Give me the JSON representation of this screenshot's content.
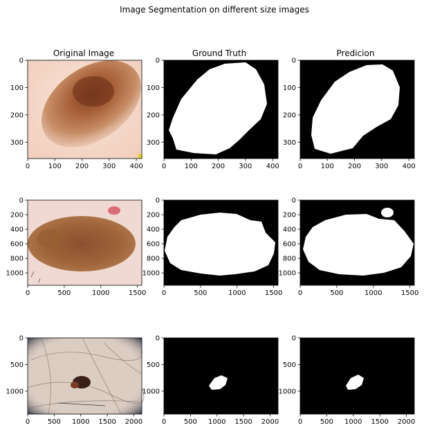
{
  "figure": {
    "title": "Image Segmentation on different size images",
    "columns": [
      "Original Image",
      "Ground Truth",
      "Predicion"
    ]
  },
  "chart_data": [
    {
      "type": "image",
      "row": 1,
      "col": 1,
      "title": "Original Image",
      "content": "skin-lesion-photo",
      "xlim": [
        0,
        420
      ],
      "ylim": [
        360,
        0
      ],
      "xticks": [
        0,
        100,
        200,
        300,
        400
      ],
      "yticks": [
        0,
        100,
        200,
        300
      ]
    },
    {
      "type": "image",
      "row": 1,
      "col": 2,
      "title": "Ground Truth",
      "content": "binary-mask",
      "xlim": [
        0,
        420
      ],
      "ylim": [
        360,
        0
      ],
      "xticks": [
        0,
        100,
        200,
        300,
        400
      ],
      "yticks": [
        0,
        100,
        200,
        300
      ]
    },
    {
      "type": "image",
      "row": 1,
      "col": 3,
      "title": "Predicion",
      "content": "binary-mask",
      "xlim": [
        0,
        420
      ],
      "ylim": [
        360,
        0
      ],
      "xticks": [
        0,
        100,
        200,
        300,
        400
      ],
      "yticks": [
        0,
        100,
        200,
        300
      ]
    },
    {
      "type": "image",
      "row": 2,
      "col": 1,
      "title": "",
      "content": "skin-lesion-photo",
      "xlim": [
        0,
        1560
      ],
      "ylim": [
        1170,
        0
      ],
      "xticks": [
        0,
        500,
        1000,
        1500
      ],
      "yticks": [
        0,
        200,
        400,
        600,
        800,
        1000
      ]
    },
    {
      "type": "image",
      "row": 2,
      "col": 2,
      "title": "",
      "content": "binary-mask",
      "xlim": [
        0,
        1560
      ],
      "ylim": [
        1170,
        0
      ],
      "xticks": [
        0,
        500,
        1000,
        1500
      ],
      "yticks": [
        0,
        200,
        400,
        600,
        800,
        1000
      ]
    },
    {
      "type": "image",
      "row": 2,
      "col": 3,
      "title": "",
      "content": "binary-mask",
      "xlim": [
        0,
        1560
      ],
      "ylim": [
        1170,
        0
      ],
      "xticks": [
        0,
        500,
        1000,
        1500
      ],
      "yticks": [
        0,
        200,
        400,
        600,
        800,
        1000
      ]
    },
    {
      "type": "image",
      "row": 3,
      "col": 1,
      "title": "",
      "content": "skin-lesion-photo",
      "xlim": [
        0,
        2150
      ],
      "ylim": [
        1430,
        0
      ],
      "xticks": [
        0,
        500,
        1000,
        1500,
        2000
      ],
      "yticks": [
        0,
        500,
        1000
      ]
    },
    {
      "type": "image",
      "row": 3,
      "col": 2,
      "title": "",
      "content": "binary-mask",
      "xlim": [
        0,
        2150
      ],
      "ylim": [
        1430,
        0
      ],
      "xticks": [
        0,
        500,
        1000,
        1500,
        2000
      ],
      "yticks": [
        0,
        500,
        1000
      ]
    },
    {
      "type": "image",
      "row": 3,
      "col": 3,
      "title": "",
      "content": "binary-mask",
      "xlim": [
        0,
        2150
      ],
      "ylim": [
        1430,
        0
      ],
      "xticks": [
        0,
        500,
        1000,
        1500,
        2000
      ],
      "yticks": [
        0,
        500,
        1000
      ]
    }
  ]
}
